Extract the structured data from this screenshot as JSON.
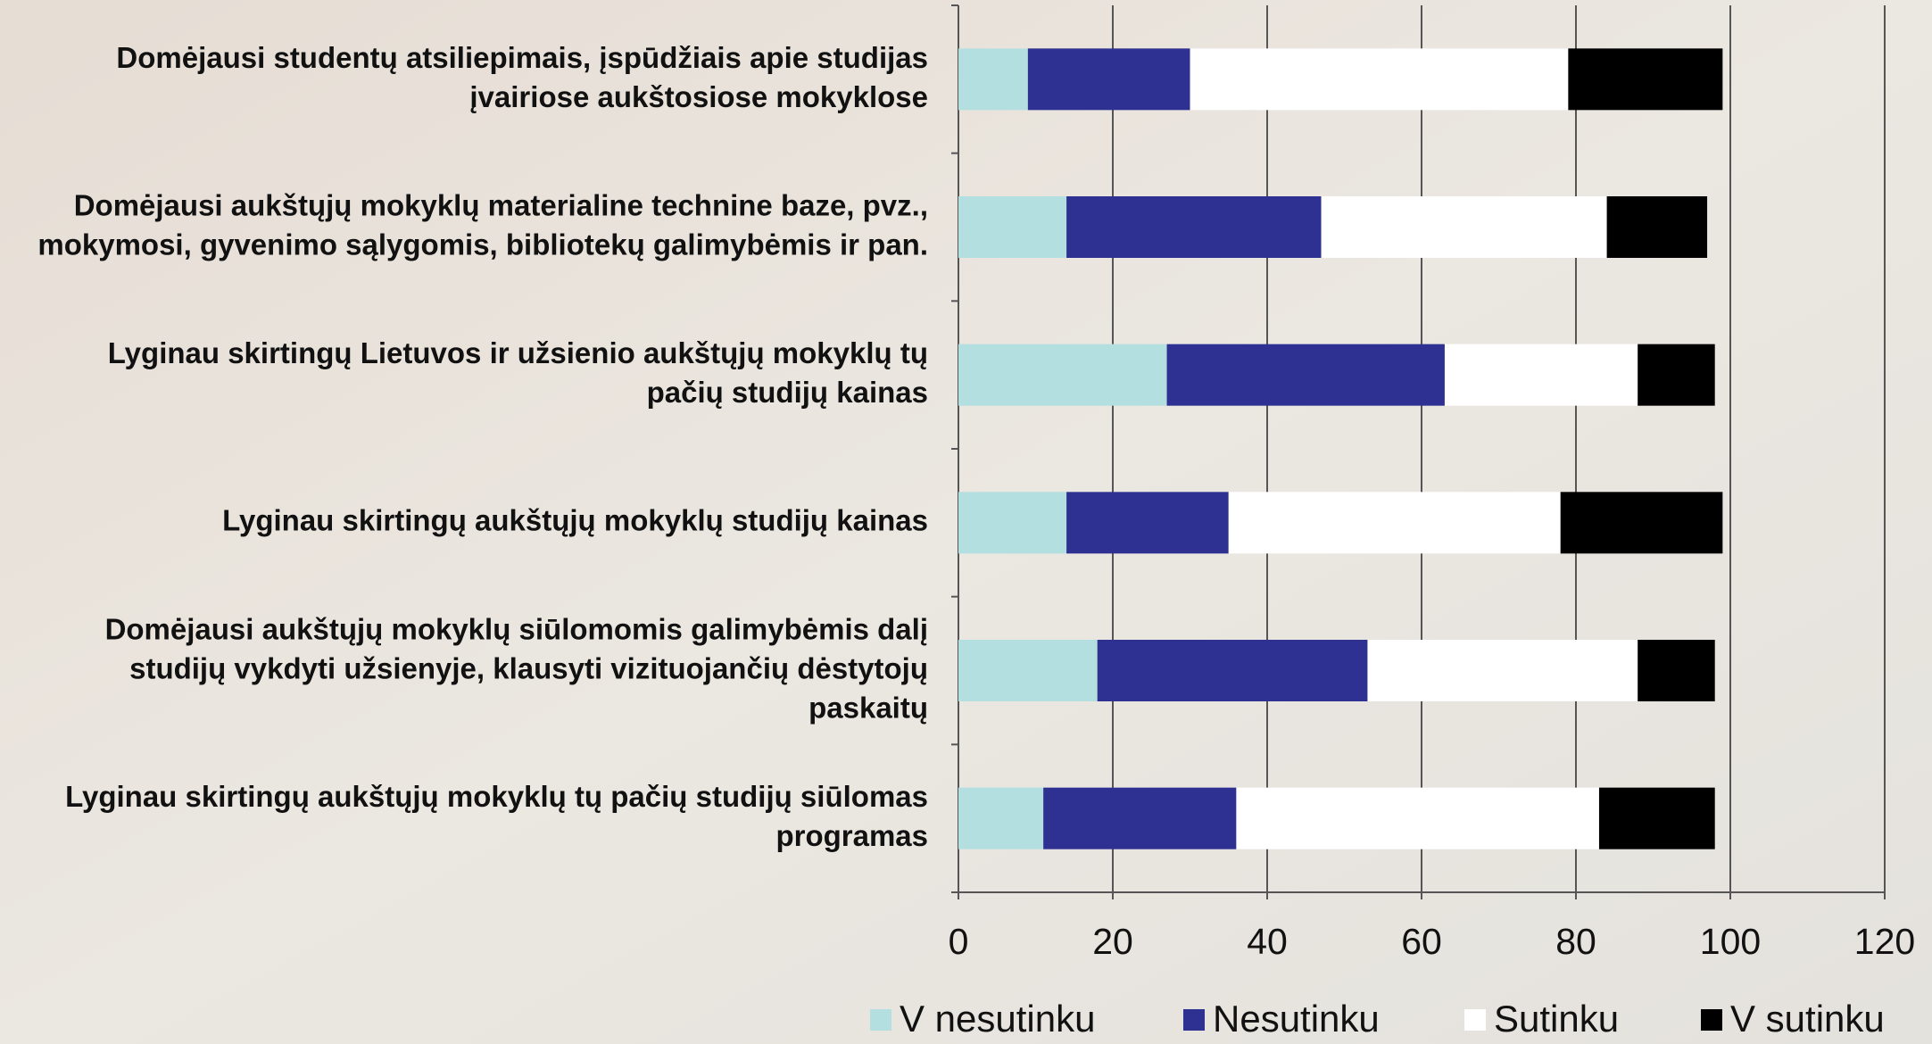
{
  "chart_data": {
    "type": "stacked-bar-horizontal",
    "categories": [
      "Domėjausi studentų atsiliepimais, įspūdžiais apie studijas\nįvairiose aukštosiose mokyklose",
      "Domėjausi aukštųjų mokyklų materialine technine baze, pvz.,\nmokymosi, gyvenimo sąlygomis, bibliotekų galimybėmis ir pan.",
      "Lyginau skirtingų Lietuvos ir užsienio aukštųjų mokyklų tų\npačių studijų kainas",
      "Lyginau skirtingų aukštųjų mokyklų studijų kainas",
      "Domėjausi aukštųjų mokyklų siūlomomis galimybėmis dalį\nstudijų vykdyti užsienyje, klausyti vizituojančių dėstytojų\npaskaitų",
      "Lyginau skirtingų aukštųjų mokyklų tų pačių studijų siūlomas\nprogramas"
    ],
    "series": [
      {
        "name": "V nesutinku",
        "color": "#b4dfe0",
        "values": [
          9,
          14,
          27,
          14,
          18,
          11
        ]
      },
      {
        "name": "Nesutinku",
        "color": "#2e3192",
        "values": [
          21,
          33,
          36,
          21,
          35,
          25
        ]
      },
      {
        "name": "Sutinku",
        "color": "#ffffff",
        "values": [
          49,
          37,
          25,
          43,
          35,
          47
        ]
      },
      {
        "name": "V sutinku",
        "color": "#000000",
        "values": [
          20,
          13,
          10,
          21,
          10,
          15
        ]
      }
    ],
    "xlim": [
      0,
      120
    ],
    "xticks": [
      0,
      20,
      40,
      60,
      80,
      100,
      120
    ],
    "grid": true,
    "legend": "bottom"
  }
}
